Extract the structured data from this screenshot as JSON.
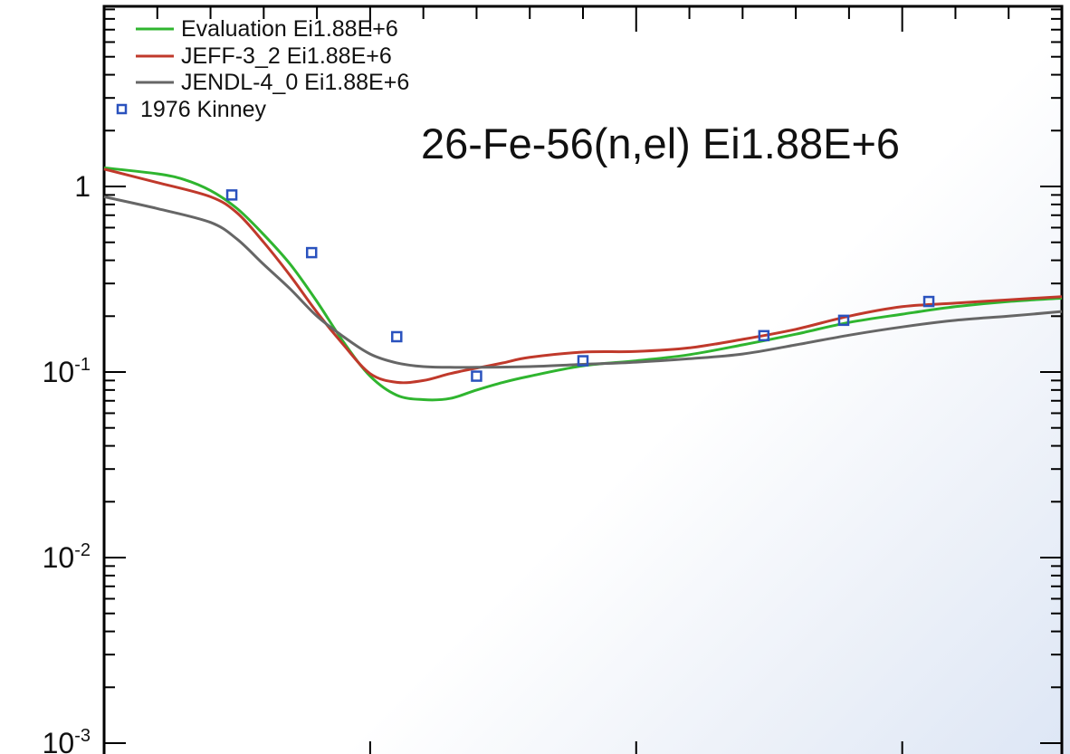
{
  "chart_data": {
    "type": "line",
    "title": "26-Fe-56(n,el) Ei1.88E+6",
    "xlabel": "",
    "ylabel": "",
    "yscale": "log",
    "xlim": [
      0,
      180
    ],
    "ylim": [
      0.001,
      10
    ],
    "grid": false,
    "legend_position": "top-left",
    "y_ticks": [
      {
        "value": 1,
        "base": "1",
        "exp": ""
      },
      {
        "value": 0.1,
        "base": "10",
        "exp": "-1"
      },
      {
        "value": 0.01,
        "base": "10",
        "exp": "-2"
      },
      {
        "value": 0.001,
        "base": "10",
        "exp": "-3"
      }
    ],
    "series": [
      {
        "name": "Evaluation Ei1.88E+6",
        "kind": "line",
        "color": "#2fb52f",
        "x": [
          0,
          10,
          15,
          20,
          25,
          30,
          35,
          40,
          45,
          50,
          55,
          60,
          65,
          70,
          75,
          80,
          90,
          100,
          110,
          120,
          130,
          140,
          150,
          160,
          170,
          180
        ],
        "y": [
          1.26,
          1.17,
          1.09,
          0.95,
          0.76,
          0.55,
          0.38,
          0.24,
          0.145,
          0.095,
          0.075,
          0.071,
          0.072,
          0.08,
          0.088,
          0.095,
          0.108,
          0.115,
          0.124,
          0.14,
          0.16,
          0.185,
          0.205,
          0.225,
          0.24,
          0.25
        ]
      },
      {
        "name": "JEFF-3_2 Ei1.88E+6",
        "kind": "line",
        "color": "#c0392b",
        "x": [
          0,
          10,
          20,
          25,
          30,
          35,
          40,
          45,
          50,
          55,
          60,
          65,
          70,
          75,
          80,
          90,
          100,
          110,
          120,
          130,
          140,
          150,
          160,
          170,
          180
        ],
        "y": [
          1.24,
          1.05,
          0.88,
          0.72,
          0.5,
          0.33,
          0.21,
          0.14,
          0.098,
          0.088,
          0.09,
          0.098,
          0.105,
          0.112,
          0.12,
          0.128,
          0.129,
          0.135,
          0.15,
          0.17,
          0.2,
          0.225,
          0.235,
          0.245,
          0.255
        ]
      },
      {
        "name": "JENDL-4_0 Ei1.88E+6",
        "kind": "line",
        "color": "#666666",
        "x": [
          0,
          10,
          20,
          25,
          30,
          35,
          40,
          45,
          50,
          55,
          60,
          65,
          70,
          80,
          90,
          100,
          110,
          120,
          130,
          140,
          150,
          160,
          170,
          180
        ],
        "y": [
          0.88,
          0.76,
          0.64,
          0.52,
          0.38,
          0.28,
          0.2,
          0.155,
          0.125,
          0.112,
          0.107,
          0.106,
          0.106,
          0.107,
          0.11,
          0.113,
          0.118,
          0.125,
          0.14,
          0.158,
          0.175,
          0.19,
          0.2,
          0.212
        ]
      },
      {
        "name": "1976 Kinney",
        "kind": "scatter",
        "color": "#2a52be",
        "x": [
          24,
          39,
          55,
          70,
          90,
          124,
          139,
          155
        ],
        "y": [
          0.9,
          0.44,
          0.155,
          0.095,
          0.115,
          0.157,
          0.19,
          0.24
        ]
      }
    ]
  }
}
